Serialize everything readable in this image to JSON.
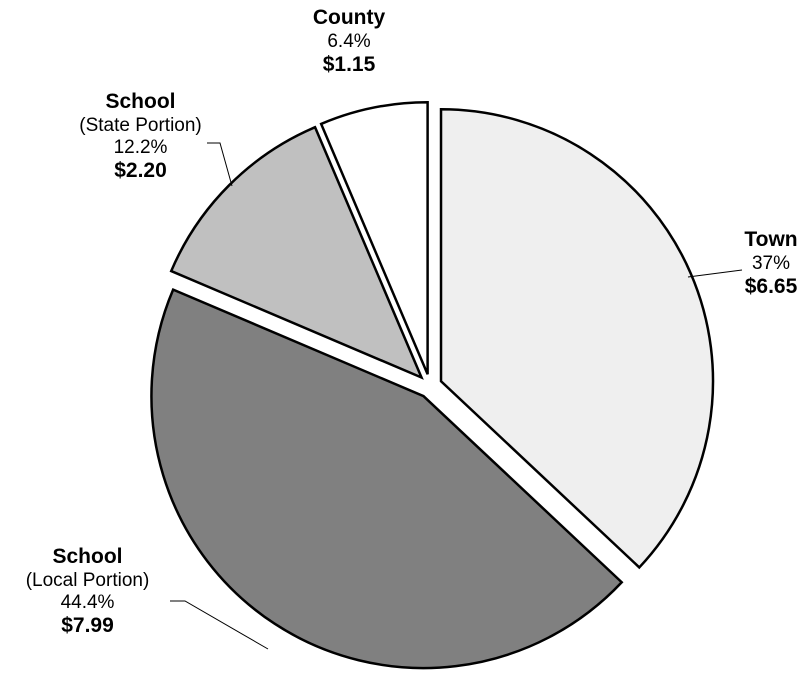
{
  "chart_data": {
    "type": "pie",
    "start_angle_deg": 0,
    "direction": "clockwise",
    "exploded": true,
    "slices": [
      {
        "name": "Town",
        "sub": "",
        "percent": 37,
        "pct_label": "37%",
        "amount_label": "$6.65",
        "color": "#efefef"
      },
      {
        "name": "School",
        "sub": "(Local Portion)",
        "percent": 44.4,
        "pct_label": "44.4%",
        "amount_label": "$7.99",
        "color": "#808080"
      },
      {
        "name": "School",
        "sub": "(State Portion)",
        "percent": 12.2,
        "pct_label": "12.2%",
        "amount_label": "$2.20",
        "color": "#c0c0c0"
      },
      {
        "name": "County",
        "sub": "",
        "percent": 6.4,
        "pct_label": "6.4%",
        "amount_label": "$1.15",
        "color": "#ffffff"
      }
    ]
  }
}
